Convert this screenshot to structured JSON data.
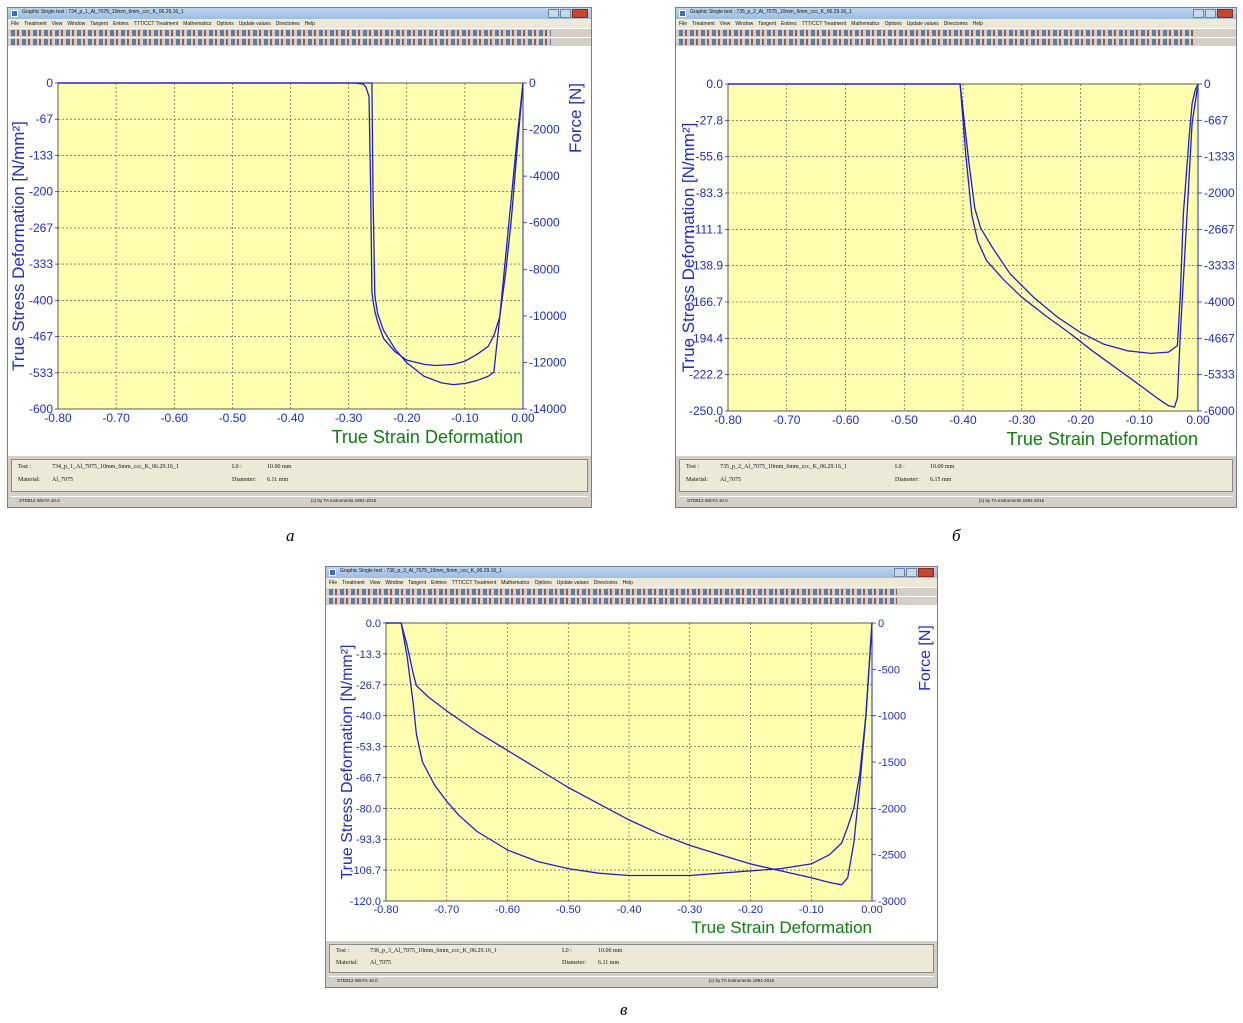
{
  "panels": [
    {
      "id": "a",
      "window_title": "Graphic Single test : 734_p_1_Al_7075_10mm_6mm_ccc_K_06.29.16_1",
      "menu": [
        "File",
        "Treatment",
        "View",
        "Window",
        "Tangent",
        "Entries",
        "TTT/CCT Treatment",
        "Mathematics",
        "Options",
        "Update values",
        "Directories",
        "Help"
      ],
      "info": {
        "test_label": "Test :",
        "test_value": "734_p_1_Al_7075_10mm_6mm_ccc_K_06.29.16_1",
        "material_label": "Material:",
        "material_value": "Al_7075",
        "l0_label": "L0 :",
        "l0_value": "10.00 mm",
        "diameter_label": "Diameter:",
        "diameter_value": "6.11 mm"
      },
      "status": {
        "left": "STD812  WinTA 10.0",
        "right": "(c) by TA Instruments 1991-2015"
      },
      "caption": "a",
      "chart_data": {
        "type": "line",
        "xlabel": "True Strain Deformation",
        "ylabel": "True Stress Deformation  [N/mm²]",
        "y2label": "Force  [N]",
        "xlim": [
          -0.8,
          0
        ],
        "ylim": [
          -600,
          0
        ],
        "y2lim": [
          -14000,
          0
        ],
        "xticks": [
          "-0.80",
          "-0.70",
          "-0.60",
          "-0.50",
          "-0.40",
          "-0.30",
          "-0.20",
          "-0.10",
          "0.00"
        ],
        "yticks": [
          "0",
          "-67",
          "-133",
          "-200",
          "-267",
          "-333",
          "-400",
          "-467",
          "-533",
          "-600"
        ],
        "y2ticks": [
          "0",
          "-2000",
          "-4000",
          "-6000",
          "-8000",
          "-10000",
          "-12000",
          "-14000"
        ],
        "grid": true,
        "series": [
          {
            "x": [
              -0.8,
              -0.29,
              -0.275,
              -0.27,
              -0.265,
              -0.262,
              -0.26,
              -0.258,
              -0.255,
              -0.25,
              -0.24,
              -0.22,
              -0.2,
              -0.17,
              -0.15,
              -0.12,
              -0.1,
              -0.08,
              -0.06,
              -0.05,
              -0.04,
              -0.03,
              -0.02,
              -0.01,
              0.0
            ],
            "y": [
              0,
              0,
              -2,
              -8,
              -25,
              -200,
              -385,
              -400,
              -420,
              -440,
              -470,
              -495,
              -510,
              -518,
              -520,
              -518,
              -512,
              -500,
              -485,
              -465,
              -430,
              -350,
              -250,
              -120,
              0
            ]
          },
          {
            "x": [
              -0.8,
              -0.26,
              -0.258,
              -0.255,
              -0.25,
              -0.24,
              -0.22,
              -0.2,
              -0.17,
              -0.14,
              -0.12,
              -0.1,
              -0.08,
              -0.06,
              -0.05,
              -0.04,
              -0.03,
              -0.02,
              -0.01,
              0.0
            ],
            "y": [
              0,
              0,
              -200,
              -390,
              -425,
              -455,
              -490,
              -515,
              -540,
              -552,
              -555,
              -553,
              -548,
              -540,
              -532,
              -430,
              -320,
              -210,
              -100,
              0
            ]
          }
        ]
      }
    },
    {
      "id": "b",
      "window_title": "Graphic Single test : 735_p_2_Al_7075_10mm_6mm_ccc_K_06.29.16_1",
      "menu": [
        "File",
        "Treatment",
        "View",
        "Window",
        "Tangent",
        "Entries",
        "TTT/CCT Treatment",
        "Mathematics",
        "Options",
        "Update values",
        "Directories",
        "Help"
      ],
      "info": {
        "test_label": "Test :",
        "test_value": "735_p_2_Al_7075_10mm_6mm_ccc_K_06.29.16_1",
        "material_label": "Material:",
        "material_value": "Al_7075",
        "l0_label": "L0 :",
        "l0_value": "10.00 mm",
        "diameter_label": "Diameter:",
        "diameter_value": "6.15 mm"
      },
      "status": {
        "left": "STD812  WinTA 10.0",
        "right": "(c) by TA Instruments 1991-2015"
      },
      "caption": "б",
      "chart_data": {
        "type": "line",
        "xlabel": "True Strain Deformation",
        "ylabel": "True Stress Deformation  [N/mm²]",
        "y2label": "Force  [N]",
        "xlim": [
          -0.8,
          0
        ],
        "ylim": [
          -250,
          0
        ],
        "y2lim": [
          -6000,
          0
        ],
        "xticks": [
          "-0.80",
          "-0.70",
          "-0.60",
          "-0.50",
          "-0.40",
          "-0.30",
          "-0.20",
          "-0.10",
          "0.00"
        ],
        "yticks": [
          "0.0",
          "-27.8",
          "-55.6",
          "-83.3",
          "-111.1",
          "-138.9",
          "-166.7",
          "-194.4",
          "-222.2",
          "-250.0"
        ],
        "y2ticks": [
          "0",
          "-667",
          "-1333",
          "-2000",
          "-2667",
          "-3333",
          "-4000",
          "-4667",
          "-5333",
          "-6000"
        ],
        "grid": true,
        "series": [
          {
            "x": [
              -0.8,
              -0.405,
              -0.39,
              -0.38,
              -0.37,
              -0.35,
              -0.32,
              -0.28,
              -0.24,
              -0.2,
              -0.16,
              -0.12,
              -0.08,
              -0.05,
              -0.035,
              -0.03,
              -0.025,
              -0.015,
              -0.01,
              -0.005,
              0.0
            ],
            "y": [
              0,
              0,
              -60,
              -95,
              -110,
              -125,
              -145,
              -163,
              -178,
              -190,
              -199,
              -204,
              -206,
              -205,
              -200,
              -160,
              -100,
              -40,
              -15,
              -5,
              0
            ]
          },
          {
            "x": [
              -0.8,
              -0.405,
              -0.395,
              -0.385,
              -0.375,
              -0.36,
              -0.33,
              -0.3,
              -0.26,
              -0.22,
              -0.18,
              -0.14,
              -0.1,
              -0.07,
              -0.05,
              -0.04,
              -0.035,
              -0.03,
              -0.02,
              -0.01,
              0.0
            ],
            "y": [
              0,
              0,
              -55,
              -100,
              -120,
              -135,
              -150,
              -163,
              -177,
              -190,
              -204,
              -217,
              -230,
              -240,
              -246,
              -247,
              -240,
              -190,
              -110,
              -30,
              0
            ]
          }
        ]
      }
    },
    {
      "id": "c",
      "window_title": "Graphic Single test : 736_p_3_Al_7075_10mm_6mm_ccc_K_06.29.16_1",
      "menu": [
        "File",
        "Treatment",
        "View",
        "Window",
        "Tangent",
        "Entries",
        "TTT/CCT Treatment",
        "Mathematics",
        "Options",
        "Update values",
        "Directories",
        "Help"
      ],
      "info": {
        "test_label": "Test :",
        "test_value": "736_p_3_Al_7075_10mm_6mm_ccc_K_06.29.16_1",
        "material_label": "Material:",
        "material_value": "Al_7075",
        "l0_label": "L0 :",
        "l0_value": "10.00 mm",
        "diameter_label": "Diameter:",
        "diameter_value": "6.11 mm"
      },
      "status": {
        "left": "STD812  WinTA 10.0",
        "right": "(c) by TA Instruments 1991-2015"
      },
      "caption": "в",
      "chart_data": {
        "type": "line",
        "xlabel": "True Strain Deformation",
        "ylabel": "True Stress Deformation  [N/mm²]",
        "y2label": "Force  [N]",
        "xlim": [
          -0.8,
          0
        ],
        "ylim": [
          -120,
          0
        ],
        "y2lim": [
          -3000,
          0
        ],
        "xticks": [
          "-0.80",
          "-0.70",
          "-0.60",
          "-0.50",
          "-0.40",
          "-0.30",
          "-0.20",
          "-0.10",
          "0.00"
        ],
        "yticks": [
          "0.0",
          "-13.3",
          "-26.7",
          "-40.0",
          "-53.3",
          "-66.7",
          "-80.0",
          "-93.3",
          "-106.7",
          "-120.0"
        ],
        "y2ticks": [
          "0",
          "-500",
          "-1000",
          "-1500",
          "-2000",
          "-2500",
          "-3000"
        ],
        "grid": true,
        "series": [
          {
            "x": [
              -0.8,
              -0.775,
              -0.765,
              -0.755,
              -0.75,
              -0.73,
              -0.7,
              -0.65,
              -0.6,
              -0.55,
              -0.5,
              -0.45,
              -0.4,
              -0.35,
              -0.3,
              -0.25,
              -0.2,
              -0.15,
              -0.1,
              -0.07,
              -0.05,
              -0.04,
              -0.03,
              -0.02,
              -0.01,
              0.0
            ],
            "y": [
              0,
              0,
              -10,
              -22,
              -27,
              -32,
              -38,
              -47,
              -55,
              -63,
              -71,
              -78,
              -85,
              -91,
              -96,
              -100,
              -104,
              -107,
              -110,
              -112,
              -113,
              -110,
              -95,
              -70,
              -40,
              0
            ]
          },
          {
            "x": [
              -0.8,
              -0.775,
              -0.765,
              -0.755,
              -0.75,
              -0.74,
              -0.72,
              -0.7,
              -0.68,
              -0.65,
              -0.6,
              -0.55,
              -0.5,
              -0.45,
              -0.4,
              -0.35,
              -0.3,
              -0.25,
              -0.2,
              -0.15,
              -0.1,
              -0.07,
              -0.05,
              -0.04,
              -0.03,
              -0.02,
              -0.01,
              0.0
            ],
            "y": [
              0,
              0,
              -15,
              -35,
              -48,
              -60,
              -70,
              -77,
              -83,
              -90,
              -98,
              -103,
              -106,
              -108,
              -109,
              -109,
              -109,
              -108,
              -107,
              -106,
              -104,
              -100,
              -95,
              -88,
              -80,
              -65,
              -40,
              0
            ]
          }
        ]
      }
    }
  ],
  "colors": {
    "plot_bg": "#ffffb0",
    "curve": "#1f1fcc",
    "axis_text": "#1e2ec8",
    "xlabel_text": "#0f7f10",
    "frame_bg": "#ffffff"
  }
}
